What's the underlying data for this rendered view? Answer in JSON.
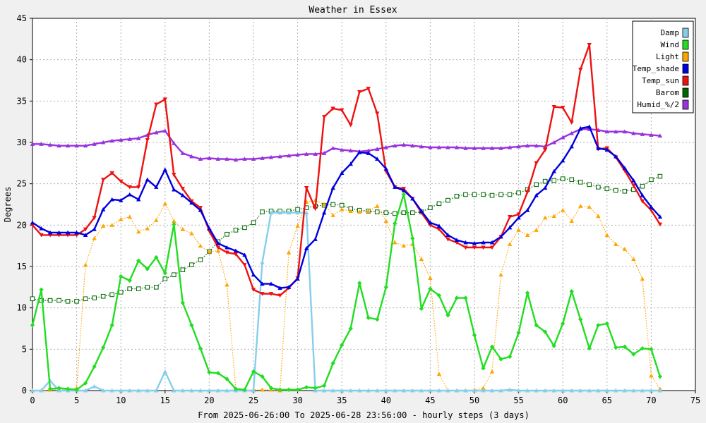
{
  "chart_data": {
    "type": "line",
    "title": "Weather in Essex",
    "xlabel": "From 2025-06-26:00 To 2025-06-28 23:56:00 - hourly steps (3 days)",
    "ylabel": "Degrees",
    "xlim": [
      0,
      75
    ],
    "ylim": [
      0,
      45
    ],
    "xticks": [
      0,
      5,
      10,
      15,
      20,
      25,
      30,
      35,
      40,
      45,
      50,
      55,
      60,
      65,
      70,
      75
    ],
    "yticks": [
      0,
      5,
      10,
      15,
      20,
      25,
      30,
      35,
      40,
      45
    ],
    "grid": true,
    "legend_position": "top-right",
    "series": [
      {
        "name": "Damp",
        "color": "#87ceeb",
        "style": "solid",
        "marker": "triangle-up",
        "values": [
          0,
          0,
          1.2,
          0,
          0,
          0,
          0,
          0.5,
          0,
          0,
          0,
          0,
          0,
          0,
          0,
          2.3,
          0,
          0,
          0,
          0,
          0,
          0,
          0,
          0,
          0,
          0,
          15.5,
          21.5,
          21.5,
          21.5,
          21.5,
          21.5,
          0,
          0,
          0,
          0,
          0,
          0,
          0,
          0,
          0,
          0,
          0,
          0,
          0,
          0,
          0,
          0,
          0,
          0,
          0,
          0,
          0,
          0,
          0.1,
          0,
          0,
          0,
          0,
          0,
          0,
          0,
          0,
          0,
          0,
          0,
          0,
          0,
          0,
          0,
          0,
          0
        ]
      },
      {
        "name": "Wind",
        "color": "#22dd22",
        "style": "solid",
        "marker": "diamond",
        "values": [
          7.9,
          12.2,
          0.2,
          0.3,
          0.2,
          0.1,
          0.9,
          2.9,
          5.2,
          7.9,
          13.8,
          13.3,
          15.7,
          14.7,
          16.1,
          14.2,
          20.1,
          10.6,
          7.9,
          5.1,
          2.2,
          2.1,
          1.4,
          0.2,
          0.1,
          2.3,
          1.7,
          0.3,
          0.1,
          0.1,
          0.1,
          0.4,
          0.3,
          0.6,
          3.3,
          5.5,
          7.5,
          13.0,
          8.8,
          8.6,
          12.5,
          20.2,
          23.7,
          18.4,
          9.9,
          12.3,
          11.5,
          9.1,
          11.2,
          11.2,
          6.7,
          2.7,
          5.3,
          3.8,
          4.1,
          7.0,
          11.8,
          7.9,
          7.1,
          5.4,
          8.1,
          12.0,
          8.6,
          5.1,
          7.9,
          8.1,
          5.2,
          5.3,
          4.4,
          5.1,
          5.0,
          1.7
        ]
      },
      {
        "name": "Light",
        "color": "#ffa500",
        "style": "dotted",
        "marker": "triangle-up",
        "values": [
          0,
          0,
          0.1,
          0.2,
          0.1,
          0.3,
          15.2,
          18.4,
          19.9,
          20.0,
          20.7,
          21.0,
          19.2,
          19.6,
          20.6,
          22.6,
          20.5,
          19.5,
          19.0,
          17.5,
          16.8,
          16.9,
          12.8,
          0.1,
          0,
          0.1,
          0.1,
          0.1,
          0,
          16.7,
          19.9,
          22.8,
          23.0,
          22.5,
          21.2,
          21.9,
          21.7,
          21.6,
          21.7,
          22.3,
          20.5,
          17.9,
          17.5,
          17.7,
          15.9,
          13.6,
          2.0,
          0,
          0,
          0,
          0.1,
          0.3,
          2.3,
          14.0,
          17.7,
          19.4,
          18.8,
          19.4,
          20.9,
          21.1,
          21.8,
          20.5,
          22.3,
          22.2,
          21.1,
          18.8,
          17.7,
          17.1,
          15.9,
          13.5,
          1.8,
          0.2
        ]
      },
      {
        "name": "Temp_shade",
        "color": "#0000dd",
        "style": "solid",
        "marker": "triangle-up",
        "values": [
          20.3,
          19.6,
          19.1,
          19.1,
          19.1,
          19.1,
          18.8,
          19.5,
          21.9,
          23.1,
          23.0,
          23.7,
          23.1,
          25.5,
          24.6,
          26.7,
          24.3,
          23.6,
          22.7,
          21.8,
          19.6,
          17.8,
          17.3,
          16.9,
          16.4,
          14.0,
          12.9,
          12.9,
          12.4,
          12.5,
          13.5,
          17.2,
          18.3,
          21.5,
          24.5,
          26.3,
          27.4,
          28.8,
          28.7,
          28.0,
          26.8,
          24.6,
          24.2,
          23.2,
          21.7,
          20.3,
          19.9,
          18.8,
          18.2,
          17.9,
          17.8,
          17.9,
          17.9,
          18.6,
          19.7,
          20.9,
          21.8,
          23.6,
          24.5,
          26.5,
          27.8,
          29.5,
          31.7,
          31.9,
          29.3,
          29.1,
          28.3,
          26.9,
          25.4,
          23.6,
          22.2,
          21.0
        ]
      },
      {
        "name": "Temp_sun",
        "color": "#ee1111",
        "style": "solid",
        "marker": "triangle-down",
        "values": [
          20.0,
          18.8,
          18.8,
          18.8,
          18.8,
          18.8,
          19.5,
          20.9,
          25.5,
          26.3,
          25.3,
          24.6,
          24.6,
          30.3,
          34.6,
          35.2,
          26.1,
          24.4,
          22.9,
          22.1,
          19.3,
          17.3,
          16.7,
          16.5,
          15.2,
          12.2,
          11.7,
          11.7,
          11.5,
          12.4,
          13.6,
          24.5,
          22.0,
          33.1,
          34.1,
          33.9,
          32.1,
          36.1,
          36.5,
          33.5,
          26.5,
          24.6,
          24.4,
          23.2,
          21.5,
          20.0,
          19.5,
          18.3,
          17.9,
          17.3,
          17.3,
          17.3,
          17.3,
          18.6,
          21.0,
          21.3,
          24.0,
          27.5,
          29.1,
          34.3,
          34.2,
          32.4,
          38.8,
          41.8,
          29.2,
          29.3,
          28.2,
          26.6,
          24.8,
          22.9,
          21.8,
          20.1
        ]
      },
      {
        "name": "Barom",
        "color": "#006600",
        "style": "dotted",
        "marker": "square",
        "values": [
          11.1,
          10.9,
          10.9,
          10.9,
          10.8,
          10.8,
          11.1,
          11.2,
          11.4,
          11.6,
          11.9,
          12.3,
          12.3,
          12.5,
          12.5,
          13.5,
          14.0,
          14.6,
          15.2,
          15.8,
          16.8,
          18.0,
          18.9,
          19.4,
          19.7,
          20.3,
          21.6,
          21.7,
          21.7,
          21.7,
          21.9,
          22.1,
          22.3,
          22.4,
          22.5,
          22.4,
          22.0,
          21.8,
          21.7,
          21.6,
          21.5,
          21.4,
          21.5,
          21.5,
          21.6,
          22.1,
          22.6,
          23.0,
          23.5,
          23.7,
          23.7,
          23.7,
          23.6,
          23.7,
          23.7,
          23.9,
          24.3,
          24.9,
          25.3,
          25.4,
          25.6,
          25.5,
          25.2,
          24.9,
          24.6,
          24.4,
          24.2,
          24.1,
          24.3,
          24.7,
          25.5,
          25.9
        ]
      },
      {
        "name": "Humid_%/2",
        "color": "#9933dd",
        "style": "solid",
        "marker": "triangle-up",
        "values": [
          29.8,
          29.8,
          29.7,
          29.6,
          29.6,
          29.6,
          29.6,
          29.8,
          30.0,
          30.2,
          30.3,
          30.4,
          30.5,
          30.9,
          31.2,
          31.4,
          29.9,
          28.7,
          28.3,
          28.0,
          28.1,
          28.0,
          28.0,
          27.9,
          28.0,
          28.0,
          28.1,
          28.2,
          28.3,
          28.4,
          28.5,
          28.6,
          28.6,
          28.7,
          29.3,
          29.1,
          29.0,
          28.9,
          29.0,
          29.2,
          29.4,
          29.6,
          29.7,
          29.6,
          29.5,
          29.4,
          29.4,
          29.4,
          29.4,
          29.3,
          29.3,
          29.3,
          29.3,
          29.3,
          29.4,
          29.5,
          29.6,
          29.6,
          29.5,
          30.0,
          30.6,
          31.1,
          31.6,
          31.6,
          31.5,
          31.3,
          31.3,
          31.3,
          31.1,
          31.0,
          30.9,
          30.8
        ]
      }
    ]
  }
}
